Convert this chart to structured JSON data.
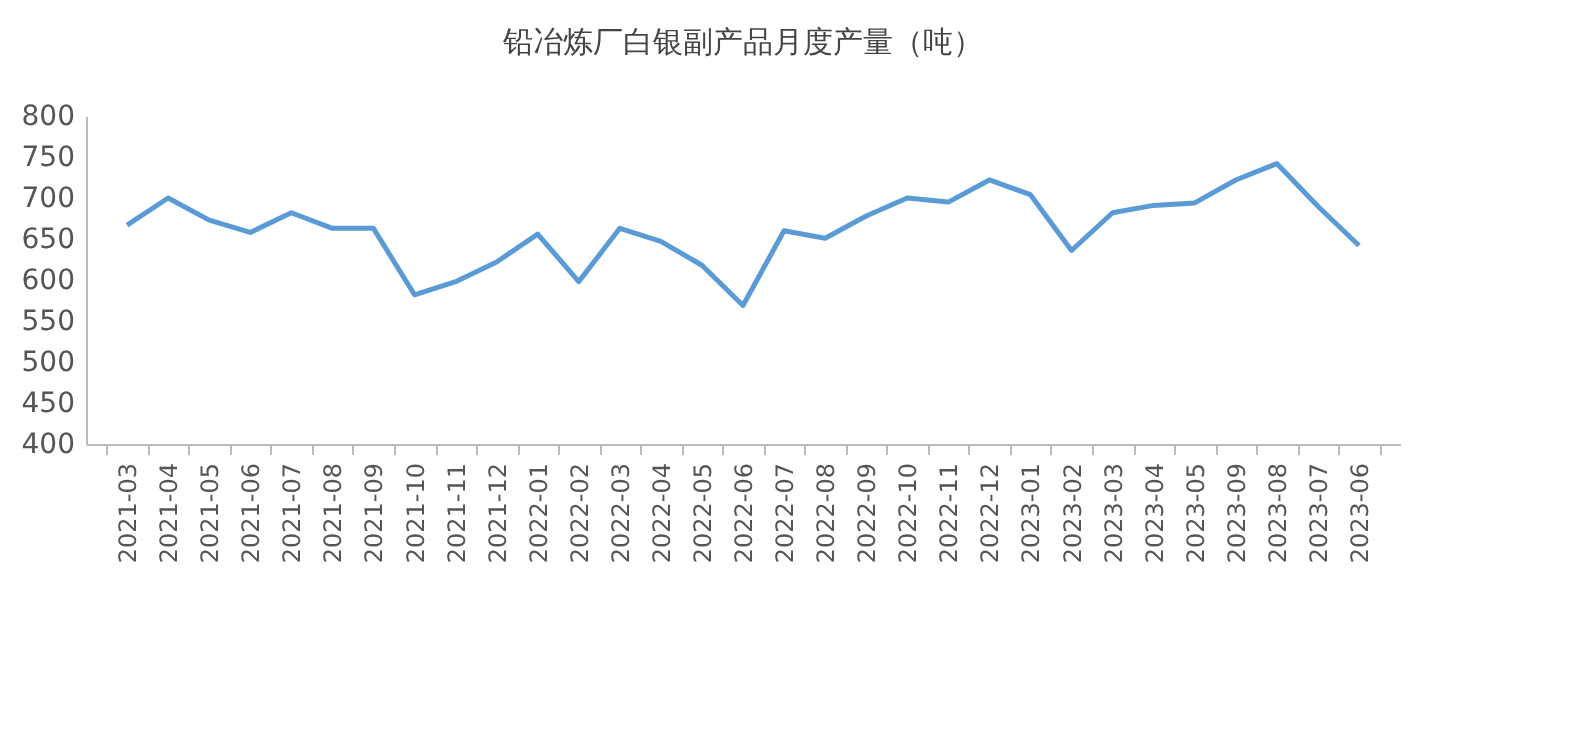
{
  "chart_data": {
    "type": "line",
    "title": "铅冶炼厂白银副产品月度产量（吨）",
    "categories": [
      "2021-03",
      "2021-04",
      "2021-05",
      "2021-06",
      "2021-07",
      "2021-08",
      "2021-09",
      "2021-10",
      "2021-11",
      "2021-12",
      "2022-01",
      "2022-02",
      "2022-03",
      "2022-04",
      "2022-05",
      "2022-06",
      "2022-07",
      "2022-08",
      "2022-09",
      "2022-10",
      "2022-11",
      "2022-12",
      "2023-01",
      "2023-02",
      "2023-03",
      "2023-04",
      "2023-05",
      "2023-09",
      "2023-08",
      "2023-07",
      "2023-06"
    ],
    "series": [
      {
        "color": "#5b9bd5",
        "values": [
          667,
          700,
          673,
          658,
          682,
          663,
          663,
          582,
          598,
          622,
          656,
          598,
          663,
          647,
          618,
          569,
          660,
          651,
          678,
          700,
          695,
          722,
          704,
          636,
          682,
          691,
          694,
          722,
          742,
          690,
          642
        ]
      }
    ],
    "ylim": [
      400,
      800
    ],
    "yticks": [
      400,
      450,
      500,
      550,
      600,
      650,
      700,
      750,
      800
    ],
    "grid": false,
    "legend": false,
    "marker": "none",
    "line_style": "solid"
  }
}
